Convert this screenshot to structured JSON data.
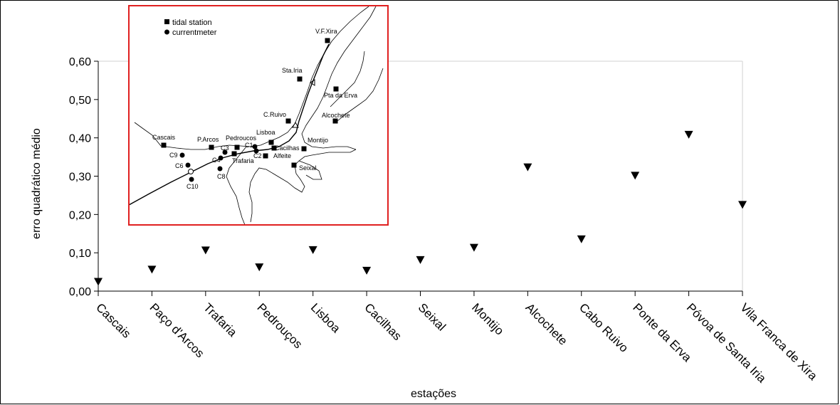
{
  "chart_data": {
    "type": "scatter",
    "xlabel": "estações",
    "ylabel": "erro quadrático médio",
    "ylim": [
      0,
      0.6
    ],
    "ytick_values": [
      0,
      0.1,
      0.2,
      0.3,
      0.4,
      0.5,
      0.6
    ],
    "ytick_labels": [
      "0,00",
      "0,10",
      "0,20",
      "0,30",
      "0,40",
      "0,50",
      "0,60"
    ],
    "grid": false,
    "marker": "down-triangle",
    "categories": [
      "Cascais",
      "Paço d'Arcos",
      "Trafaria",
      "Pedrouços",
      "Lisboa",
      "Cacilhas",
      "Seixal",
      "Montijo",
      "Alcochete",
      "Cabo Ruivo",
      "Ponte da Erva",
      "Póvoa de Santa Iria",
      "Vila Franca de Xira"
    ],
    "values": [
      0.025,
      0.057,
      0.107,
      0.063,
      0.108,
      0.054,
      0.082,
      0.114,
      0.324,
      0.136,
      0.302,
      0.409,
      0.226
    ]
  },
  "inset_map": {
    "border_color": "#e02020",
    "legend": {
      "tidal_station": "tidal station",
      "currentmeter": "currentmeter"
    },
    "tidal_stations": [
      "V.F.Xira",
      "Sta.Iria",
      "Pta da Erva",
      "C.Ruivo",
      "Alcochete",
      "Cascais",
      "P.Arcos",
      "Pedroucos",
      "Lisboa",
      "Cacilhas",
      "Montijo",
      "Trafaria",
      "Alfeite",
      "Seixal"
    ],
    "currentmeters": [
      "C9",
      "C6",
      "C10",
      "C8",
      "C3",
      "C1",
      "C2",
      "C4"
    ]
  }
}
